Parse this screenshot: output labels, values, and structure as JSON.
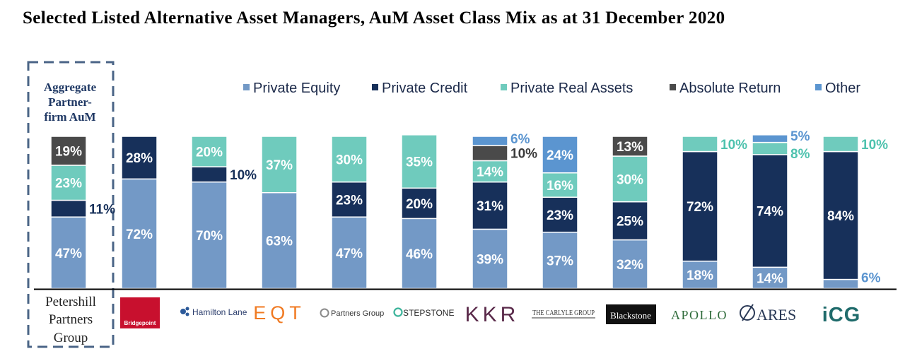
{
  "title": "Selected Listed Alternative Asset Managers, AuM Asset Class Mix as at 31 December 2020",
  "aggregate_label": [
    "Aggregate",
    "Partner-",
    "firm AuM"
  ],
  "colors": {
    "Private Equity": "#7399c6",
    "Private Credit": "#17305a",
    "Private Real Assets": "#6fcbbd",
    "Absolute Return": "#4a4a4a",
    "Other": "#5b95d0"
  },
  "chart_data": {
    "type": "bar",
    "stacked": true,
    "normalized_percent": true,
    "legend_position": "top",
    "series_names": [
      "Private Equity",
      "Private Credit",
      "Private Real Assets",
      "Absolute Return",
      "Other"
    ],
    "categories": [
      "Petershill Partners Group",
      "Bridgepoint",
      "Hamilton Lane",
      "EQT",
      "Partners Group",
      "StepStone",
      "KKR",
      "The Carlyle Group",
      "Blackstone",
      "Apollo",
      "Ares",
      "ICG"
    ],
    "series": [
      {
        "name": "Private Equity",
        "values": [
          47,
          72,
          70,
          63,
          47,
          46,
          39,
          37,
          32,
          18,
          14,
          6
        ]
      },
      {
        "name": "Private Credit",
        "values": [
          11,
          28,
          10,
          0,
          23,
          20,
          31,
          23,
          25,
          72,
          74,
          84
        ]
      },
      {
        "name": "Private Real Assets",
        "values": [
          23,
          0,
          20,
          37,
          30,
          35,
          14,
          16,
          30,
          10,
          8,
          10
        ]
      },
      {
        "name": "Absolute Return",
        "values": [
          19,
          0,
          0,
          0,
          0,
          0,
          10,
          0,
          13,
          0,
          0,
          0
        ]
      },
      {
        "name": "Other",
        "values": [
          0,
          0,
          0,
          0,
          0,
          0,
          6,
          24,
          0,
          0,
          5,
          0
        ]
      }
    ],
    "ylim": [
      0,
      100
    ]
  },
  "logos": [
    "Petershill Partners Group",
    "Bridgepoint",
    "Hamilton Lane",
    "EQT",
    "Partners Group",
    "STEPSTONE",
    "KKR",
    "THE CARLYLE GROUP",
    "Blackstone",
    "APOLLO",
    "ARES",
    "iCG"
  ],
  "petershill_lines": [
    "Petershill",
    "Partners",
    "Group"
  ]
}
